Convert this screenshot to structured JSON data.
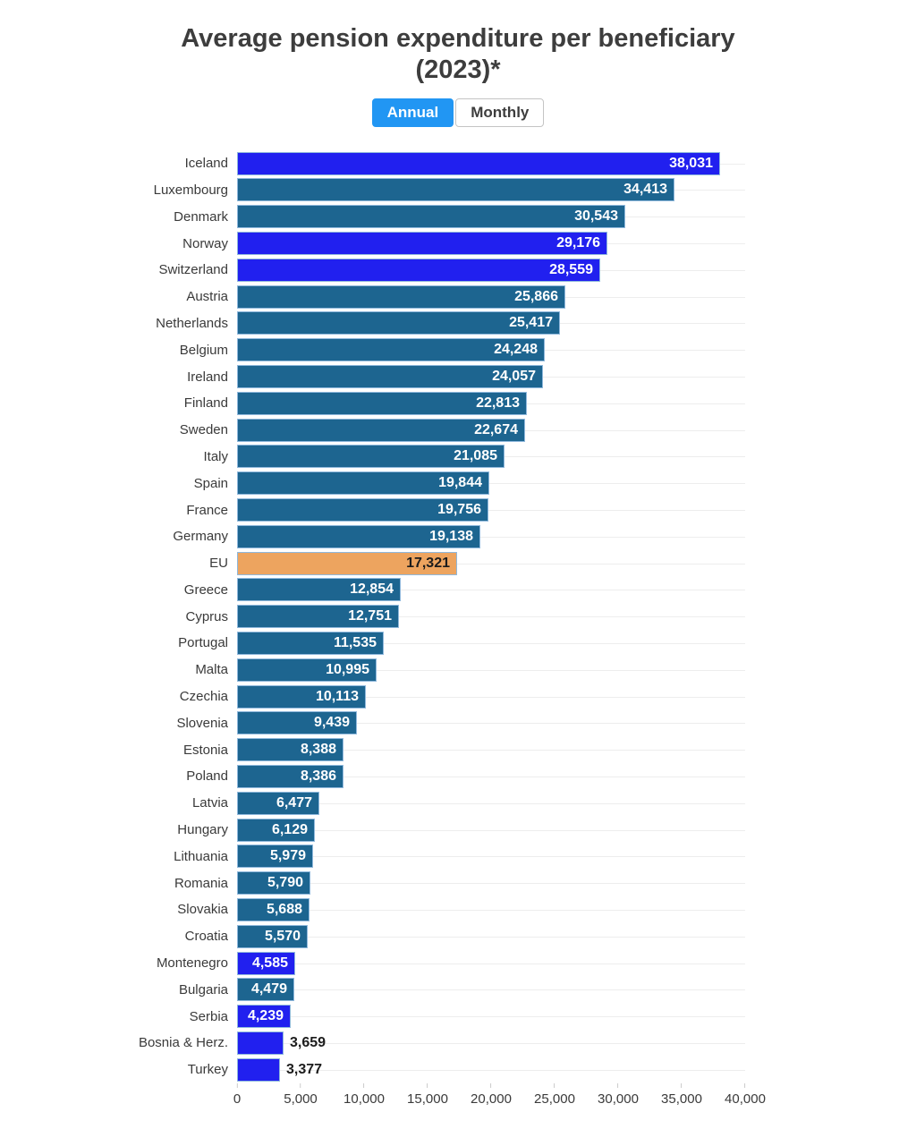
{
  "title": {
    "line1": "Average pension expenditure per beneficiary",
    "line2": "(2023)*"
  },
  "toggle": {
    "annual_label": "Annual",
    "monthly_label": "Monthly",
    "active": "Annual"
  },
  "colors": {
    "teal": "#1d6590",
    "blue": "#2120ef",
    "orange": "#eda45f",
    "active_toggle": "#2196f3"
  },
  "chart_data": {
    "type": "bar",
    "orientation": "horizontal",
    "title": "Average pension expenditure per beneficiary (2023)*",
    "xlabel": "",
    "ylabel": "",
    "xlim": [
      0,
      40000
    ],
    "grid": "horizontal-faint",
    "x_ticks": [
      "0",
      "5,000",
      "10,000",
      "15,000",
      "20,000",
      "25,000",
      "30,000",
      "35,000",
      "40,000"
    ],
    "x_tick_values": [
      0,
      5000,
      10000,
      15000,
      20000,
      25000,
      30000,
      35000,
      40000
    ],
    "items": [
      {
        "label": "Iceland",
        "value": 38031,
        "display": "38,031",
        "color": "blue",
        "value_pos": "in",
        "value_theme": "light"
      },
      {
        "label": "Luxembourg",
        "value": 34413,
        "display": "34,413",
        "color": "teal",
        "value_pos": "in",
        "value_theme": "light"
      },
      {
        "label": "Denmark",
        "value": 30543,
        "display": "30,543",
        "color": "teal",
        "value_pos": "in",
        "value_theme": "light"
      },
      {
        "label": "Norway",
        "value": 29176,
        "display": "29,176",
        "color": "blue",
        "value_pos": "in",
        "value_theme": "light"
      },
      {
        "label": "Switzerland",
        "value": 28559,
        "display": "28,559",
        "color": "blue",
        "value_pos": "in",
        "value_theme": "light"
      },
      {
        "label": "Austria",
        "value": 25866,
        "display": "25,866",
        "color": "teal",
        "value_pos": "in",
        "value_theme": "light"
      },
      {
        "label": "Netherlands",
        "value": 25417,
        "display": "25,417",
        "color": "teal",
        "value_pos": "in",
        "value_theme": "light"
      },
      {
        "label": "Belgium",
        "value": 24248,
        "display": "24,248",
        "color": "teal",
        "value_pos": "in",
        "value_theme": "light"
      },
      {
        "label": "Ireland",
        "value": 24057,
        "display": "24,057",
        "color": "teal",
        "value_pos": "in",
        "value_theme": "light"
      },
      {
        "label": "Finland",
        "value": 22813,
        "display": "22,813",
        "color": "teal",
        "value_pos": "in",
        "value_theme": "light"
      },
      {
        "label": "Sweden",
        "value": 22674,
        "display": "22,674",
        "color": "teal",
        "value_pos": "in",
        "value_theme": "light"
      },
      {
        "label": "Italy",
        "value": 21085,
        "display": "21,085",
        "color": "teal",
        "value_pos": "in",
        "value_theme": "light"
      },
      {
        "label": "Spain",
        "value": 19844,
        "display": "19,844",
        "color": "teal",
        "value_pos": "in",
        "value_theme": "light"
      },
      {
        "label": "France",
        "value": 19756,
        "display": "19,756",
        "color": "teal",
        "value_pos": "in",
        "value_theme": "light"
      },
      {
        "label": "Germany",
        "value": 19138,
        "display": "19,138",
        "color": "teal",
        "value_pos": "in",
        "value_theme": "light"
      },
      {
        "label": "EU",
        "value": 17321,
        "display": "17,321",
        "color": "orange",
        "value_pos": "in",
        "value_theme": "dark"
      },
      {
        "label": "Greece",
        "value": 12854,
        "display": "12,854",
        "color": "teal",
        "value_pos": "in",
        "value_theme": "light"
      },
      {
        "label": "Cyprus",
        "value": 12751,
        "display": "12,751",
        "color": "teal",
        "value_pos": "in",
        "value_theme": "light"
      },
      {
        "label": "Portugal",
        "value": 11535,
        "display": "11,535",
        "color": "teal",
        "value_pos": "in",
        "value_theme": "light"
      },
      {
        "label": "Malta",
        "value": 10995,
        "display": "10,995",
        "color": "teal",
        "value_pos": "in",
        "value_theme": "light"
      },
      {
        "label": "Czechia",
        "value": 10113,
        "display": "10,113",
        "color": "teal",
        "value_pos": "in",
        "value_theme": "light"
      },
      {
        "label": "Slovenia",
        "value": 9439,
        "display": "9,439",
        "color": "teal",
        "value_pos": "in",
        "value_theme": "light"
      },
      {
        "label": "Estonia",
        "value": 8388,
        "display": "8,388",
        "color": "teal",
        "value_pos": "in",
        "value_theme": "light"
      },
      {
        "label": "Poland",
        "value": 8386,
        "display": "8,386",
        "color": "teal",
        "value_pos": "in",
        "value_theme": "light"
      },
      {
        "label": "Latvia",
        "value": 6477,
        "display": "6,477",
        "color": "teal",
        "value_pos": "in",
        "value_theme": "light"
      },
      {
        "label": "Hungary",
        "value": 6129,
        "display": "6,129",
        "color": "teal",
        "value_pos": "in",
        "value_theme": "light"
      },
      {
        "label": "Lithuania",
        "value": 5979,
        "display": "5,979",
        "color": "teal",
        "value_pos": "in",
        "value_theme": "light"
      },
      {
        "label": "Romania",
        "value": 5790,
        "display": "5,790",
        "color": "teal",
        "value_pos": "in",
        "value_theme": "light"
      },
      {
        "label": "Slovakia",
        "value": 5688,
        "display": "5,688",
        "color": "teal",
        "value_pos": "in",
        "value_theme": "light"
      },
      {
        "label": "Croatia",
        "value": 5570,
        "display": "5,570",
        "color": "teal",
        "value_pos": "in",
        "value_theme": "light"
      },
      {
        "label": "Montenegro",
        "value": 4585,
        "display": "4,585",
        "color": "blue",
        "value_pos": "in",
        "value_theme": "light"
      },
      {
        "label": "Bulgaria",
        "value": 4479,
        "display": "4,479",
        "color": "teal",
        "value_pos": "in",
        "value_theme": "light"
      },
      {
        "label": "Serbia",
        "value": 4239,
        "display": "4,239",
        "color": "blue",
        "value_pos": "in",
        "value_theme": "light"
      },
      {
        "label": "Bosnia & Herz.",
        "value": 3659,
        "display": "3,659",
        "color": "blue",
        "value_pos": "out",
        "value_theme": "dark"
      },
      {
        "label": "Turkey",
        "value": 3377,
        "display": "3,377",
        "color": "blue",
        "value_pos": "out",
        "value_theme": "dark"
      }
    ]
  }
}
